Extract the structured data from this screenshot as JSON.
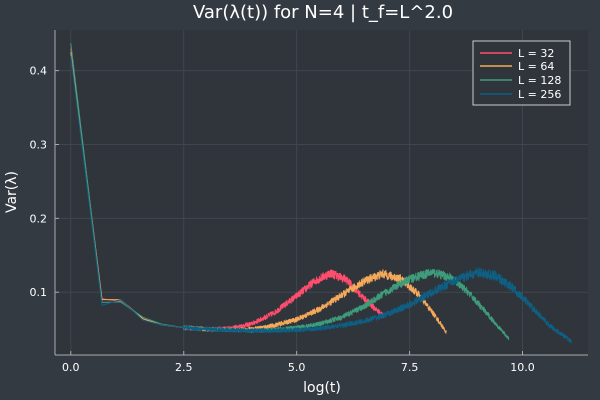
{
  "chart_data": {
    "type": "line",
    "title": "Var(λ(t)) for N=4 | t_f=L^2.0",
    "xlabel": "log(t)",
    "ylabel": "Var(λ)",
    "xlim": [
      -0.35,
      11.45
    ],
    "ylim": [
      0.015,
      0.455
    ],
    "xticks": [
      0.0,
      2.5,
      5.0,
      7.5,
      10.0
    ],
    "xtick_labels": [
      "0.0",
      "2.5",
      "5.0",
      "7.5",
      "10.0"
    ],
    "yticks": [
      0.1,
      0.2,
      0.3,
      0.4
    ],
    "ytick_labels": [
      "0.1",
      "0.2",
      "0.3",
      "0.4"
    ],
    "grid": true,
    "legend_position": "top-right",
    "colors": {
      "background": "#343a42",
      "plot_area": "#30343b",
      "grid": "#40464f",
      "axis": "#aaaaaa"
    },
    "series": [
      {
        "name": "L = 32",
        "color": "#ff4d6d",
        "points": [
          [
            0.0,
            0.43
          ],
          [
            0.69,
            0.091
          ],
          [
            1.1,
            0.088
          ],
          [
            1.6,
            0.064
          ],
          [
            2.0,
            0.056
          ],
          [
            2.5,
            0.052
          ],
          [
            3.0,
            0.05
          ],
          [
            3.5,
            0.051
          ],
          [
            4.0,
            0.057
          ],
          [
            4.5,
            0.072
          ],
          [
            5.0,
            0.095
          ],
          [
            5.4,
            0.115
          ],
          [
            5.75,
            0.126
          ],
          [
            6.1,
            0.117
          ],
          [
            6.4,
            0.097
          ],
          [
            6.75,
            0.077
          ],
          [
            6.93,
            0.068
          ]
        ],
        "noise": 0.004,
        "x_end": 6.93
      },
      {
        "name": "L = 64",
        "color": "#f5a95b",
        "points": [
          [
            0.0,
            0.425
          ],
          [
            0.69,
            0.09
          ],
          [
            1.1,
            0.09
          ],
          [
            1.6,
            0.064
          ],
          [
            2.0,
            0.056
          ],
          [
            2.5,
            0.052
          ],
          [
            3.0,
            0.05
          ],
          [
            3.5,
            0.049
          ],
          [
            4.0,
            0.05
          ],
          [
            4.5,
            0.055
          ],
          [
            5.0,
            0.063
          ],
          [
            5.5,
            0.077
          ],
          [
            6.0,
            0.096
          ],
          [
            6.5,
            0.115
          ],
          [
            6.9,
            0.125
          ],
          [
            7.3,
            0.118
          ],
          [
            7.7,
            0.097
          ],
          [
            8.1,
            0.065
          ],
          [
            8.32,
            0.045
          ]
        ],
        "noise": 0.004,
        "x_end": 8.32
      },
      {
        "name": "L = 128",
        "color": "#3e9c7a",
        "points": [
          [
            0.0,
            0.437
          ],
          [
            0.69,
            0.086
          ],
          [
            1.1,
            0.087
          ],
          [
            1.6,
            0.066
          ],
          [
            2.0,
            0.057
          ],
          [
            2.5,
            0.052
          ],
          [
            3.0,
            0.05
          ],
          [
            3.5,
            0.049
          ],
          [
            4.0,
            0.048
          ],
          [
            4.5,
            0.049
          ],
          [
            5.0,
            0.052
          ],
          [
            5.5,
            0.057
          ],
          [
            6.0,
            0.066
          ],
          [
            6.5,
            0.081
          ],
          [
            7.0,
            0.101
          ],
          [
            7.5,
            0.118
          ],
          [
            8.0,
            0.127
          ],
          [
            8.4,
            0.12
          ],
          [
            8.8,
            0.1
          ],
          [
            9.2,
            0.072
          ],
          [
            9.7,
            0.037
          ]
        ],
        "noise": 0.004,
        "x_end": 9.7
      },
      {
        "name": "L = 256",
        "color": "#0f5f83",
        "points": [
          [
            0.0,
            0.42
          ],
          [
            0.69,
            0.082
          ],
          [
            1.1,
            0.09
          ],
          [
            1.6,
            0.062
          ],
          [
            2.0,
            0.056
          ],
          [
            2.5,
            0.052
          ],
          [
            3.0,
            0.05
          ],
          [
            3.5,
            0.049
          ],
          [
            4.0,
            0.048
          ],
          [
            4.5,
            0.048
          ],
          [
            5.0,
            0.049
          ],
          [
            5.5,
            0.051
          ],
          [
            6.0,
            0.055
          ],
          [
            6.5,
            0.061
          ],
          [
            7.0,
            0.07
          ],
          [
            7.5,
            0.083
          ],
          [
            8.0,
            0.1
          ],
          [
            8.5,
            0.116
          ],
          [
            9.0,
            0.127
          ],
          [
            9.4,
            0.122
          ],
          [
            9.8,
            0.105
          ],
          [
            10.2,
            0.08
          ],
          [
            10.6,
            0.055
          ],
          [
            11.09,
            0.033
          ]
        ],
        "noise": 0.0045,
        "x_end": 11.09
      }
    ]
  }
}
